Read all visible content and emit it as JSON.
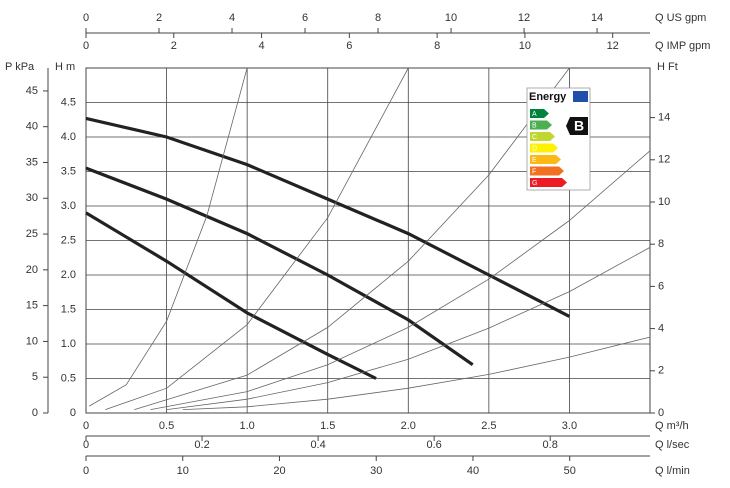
{
  "chart_data": {
    "type": "line",
    "x_label": "Q m³/h",
    "y_label": "H m",
    "y2_label": "H Ft",
    "xlim": [
      0,
      3.5
    ],
    "ylim": [
      0,
      5
    ],
    "y2lim": [
      0,
      16.35
    ],
    "xticks": [
      0,
      0.5,
      {
        "value": 1,
        "label": "1.0"
      },
      1.5,
      {
        "value": 2,
        "label": "2.0"
      },
      2.5,
      {
        "value": 3,
        "label": "3.0"
      }
    ],
    "yticks": [
      0,
      0.5,
      {
        "value": 1,
        "label": "1.0"
      },
      1.5,
      {
        "value": 2,
        "label": "2.0"
      },
      2.5,
      {
        "value": 3,
        "label": "3.0"
      },
      3.5,
      {
        "value": 4,
        "label": "4.0"
      },
      4.5
    ],
    "y2ticks": [
      0,
      2,
      4,
      6,
      8,
      10,
      12,
      14
    ],
    "grid": true,
    "extra_axes": [
      {
        "label": "P kPa",
        "side": "left",
        "lim": [
          0,
          48.2
        ],
        "ticks": [
          0,
          5,
          10,
          15,
          20,
          25,
          30,
          35,
          40,
          45
        ]
      },
      {
        "label": "Q US gpm",
        "side": "top",
        "lim": [
          0,
          15.45
        ],
        "ticks": [
          0,
          2,
          4,
          6,
          8,
          10,
          12,
          14
        ]
      },
      {
        "label": "Q IMP gpm",
        "side": "top",
        "lim": [
          0,
          12.85
        ],
        "ticks": [
          0,
          2,
          4,
          6,
          8,
          10,
          12
        ]
      },
      {
        "label": "Q l/sec",
        "side": "bottom",
        "lim": [
          0,
          0.972
        ],
        "ticks": [
          0,
          0.2,
          0.4,
          0.6,
          0.8
        ]
      },
      {
        "label": "Q l/min",
        "side": "bottom",
        "lim": [
          0,
          58.3
        ],
        "ticks": [
          0,
          10,
          20,
          30,
          40,
          50
        ]
      }
    ],
    "series": [
      {
        "color": "#222222",
        "line_width": 3.2,
        "x": [
          0,
          0.5,
          1,
          1.5,
          2,
          2.5,
          3
        ],
        "values": [
          4.27,
          4.0,
          3.6,
          3.1,
          2.6,
          2.0,
          1.4
        ]
      },
      {
        "color": "#222222",
        "line_width": 3.2,
        "x": [
          0,
          0.5,
          1,
          1.5,
          2,
          2.4
        ],
        "values": [
          3.55,
          3.1,
          2.6,
          2.0,
          1.35,
          0.7
        ]
      },
      {
        "color": "#222222",
        "line_width": 3.2,
        "x": [
          0,
          0.5,
          1,
          1.5,
          1.8
        ],
        "values": [
          2.9,
          2.2,
          1.45,
          0.85,
          0.5
        ]
      },
      {
        "color": "#666666",
        "line_width": 0.8,
        "x": [
          0.02,
          0.25,
          0.5,
          0.75,
          1.0
        ],
        "values": [
          0.1,
          0.41,
          1.33,
          2.86,
          5.0
        ]
      },
      {
        "color": "#666666",
        "line_width": 0.8,
        "x": [
          0.12,
          0.5,
          1,
          1.5,
          2
        ],
        "values": [
          0.05,
          0.36,
          1.28,
          2.83,
          5.0
        ]
      },
      {
        "color": "#666666",
        "line_width": 0.8,
        "x": [
          0.3,
          1,
          1.5,
          2,
          2.5,
          3
        ],
        "values": [
          0.05,
          0.55,
          1.24,
          2.2,
          3.45,
          5.0
        ]
      },
      {
        "color": "#666666",
        "line_width": 0.8,
        "x": [
          0.4,
          1,
          1.5,
          2,
          2.5,
          3,
          3.5
        ],
        "values": [
          0.05,
          0.31,
          0.7,
          1.24,
          1.94,
          2.79,
          3.8
        ]
      },
      {
        "color": "#666666",
        "line_width": 0.8,
        "x": [
          0.5,
          1,
          1.5,
          2,
          2.5,
          3,
          3.5
        ],
        "values": [
          0.05,
          0.2,
          0.44,
          0.78,
          1.23,
          1.76,
          2.4
        ]
      },
      {
        "color": "#666666",
        "line_width": 0.8,
        "x": [
          0.6,
          1,
          1.5,
          2,
          2.5,
          3,
          3.5
        ],
        "values": [
          0.05,
          0.09,
          0.2,
          0.36,
          0.56,
          0.81,
          1.1
        ]
      }
    ]
  },
  "energy_label": {
    "title": "Energy",
    "classes": [
      "A",
      "B",
      "C",
      "D",
      "E",
      "F",
      "G"
    ],
    "class_colors": [
      "#00843d",
      "#4caf50",
      "#bfd730",
      "#fff200",
      "#fdb913",
      "#f37021",
      "#ed1c24"
    ],
    "rating": "B"
  }
}
